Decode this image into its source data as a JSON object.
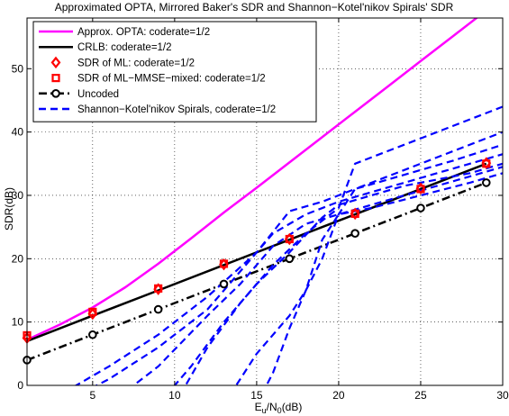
{
  "chart_data": {
    "type": "line",
    "title": "Approximated OPTA, Mirrored Baker's SDR and Shannon−Kotel'nikov Spirals' SDR",
    "xlabel": "E_u/N_0(dB)",
    "xlabel_parts": {
      "main": "E",
      "sub1": "u",
      "mid": "/N",
      "sub2": "0",
      "tail": "(dB)"
    },
    "ylabel": "SDR(dB)",
    "xlim": [
      1,
      30
    ],
    "ylim": [
      0,
      58
    ],
    "xticks": [
      5,
      10,
      15,
      20,
      25,
      30
    ],
    "yticks": [
      0,
      10,
      20,
      30,
      40,
      50
    ],
    "grid": true,
    "legend_position": "top-left",
    "series": [
      {
        "name": "Approx. OPTA: coderate=1/2",
        "color": "#ff00ff",
        "style": "solid",
        "marker": "none",
        "x": [
          1,
          3,
          5,
          7,
          9,
          11,
          13,
          15,
          17,
          19,
          21,
          23,
          25,
          27,
          29,
          30
        ],
        "y": [
          7.2,
          9.6,
          12.3,
          15.5,
          19.2,
          23.2,
          27.3,
          31.2,
          35.2,
          39.2,
          43.2,
          47.2,
          51.2,
          55.2,
          59.2,
          61.2
        ]
      },
      {
        "name": "CRLB: coderate=1/2",
        "color": "#000000",
        "style": "solid",
        "marker": "none",
        "x": [
          1,
          5,
          9,
          13,
          17,
          21,
          25,
          29
        ],
        "y": [
          7,
          11,
          15,
          19,
          23,
          27,
          31,
          35
        ]
      },
      {
        "name": "SDR of ML: coderate=1/2",
        "color": "#ff0000",
        "style": "none",
        "marker": "diamond",
        "x": [
          1,
          5,
          9,
          13,
          17,
          21,
          25,
          29
        ],
        "y": [
          7.5,
          11.3,
          15.2,
          19.1,
          23.1,
          27.1,
          31.1,
          35.1
        ]
      },
      {
        "name": "SDR of ML−MMSE−mixed: coderate=1/2",
        "color": "#ff0000",
        "style": "none",
        "marker": "square",
        "x": [
          1,
          5,
          9,
          13,
          17,
          21,
          25,
          29
        ],
        "y": [
          7.9,
          11.6,
          15.3,
          19.2,
          23.1,
          27.1,
          31,
          35
        ]
      },
      {
        "name": "Uncoded",
        "color": "#000000",
        "style": "dashdot",
        "marker": "circle",
        "x": [
          1,
          5,
          9,
          13,
          17,
          21,
          25,
          29
        ],
        "y": [
          4,
          8,
          12,
          16,
          20,
          24,
          28,
          32
        ]
      },
      {
        "name": "Shannon−Kotel'nikov Spirals, coderate=1/2",
        "color": "#0000ff",
        "style": "dashed",
        "marker": "none",
        "lines": [
          {
            "x": [
              2,
              6,
              9,
              12,
              15,
              17,
              19,
              21,
              23,
              25,
              27,
              30
            ],
            "y": [
              -3,
              3,
              8,
              14,
              21,
              27.5,
              29,
              31,
              32.5,
              34,
              35.5,
              38
            ]
          },
          {
            "x": [
              3,
              6,
              9,
              12,
              14,
              16,
              18,
              20,
              22,
              24,
              26,
              28,
              30
            ],
            "y": [
              -3,
              1,
              6,
              12,
              18,
              24,
              27,
              29,
              30.5,
              32,
              33.5,
              35,
              36.5
            ]
          },
          {
            "x": [
              6,
              9,
              12,
              14,
              16,
              18,
              20,
              22,
              24,
              26,
              28,
              30
            ],
            "y": [
              -3,
              3,
              11,
              16,
              22,
              25.5,
              27,
              28.5,
              30,
              31.5,
              33,
              34.5
            ]
          },
          {
            "x": [
              9,
              11,
              13,
              15,
              17,
              19,
              20,
              22,
              24,
              26,
              28,
              30
            ],
            "y": [
              -3,
              3,
              10,
              16,
              21,
              26.5,
              28.5,
              30,
              31.5,
              32.5,
              33.5,
              35
            ]
          },
          {
            "x": [
              10,
              12,
              14,
              16,
              18,
              20,
              21,
              24,
              27,
              30
            ],
            "y": [
              -3,
              6,
              13,
              19,
              24,
              28,
              35,
              38,
              41,
              44
            ]
          },
          {
            "x": [
              13,
              15,
              17,
              18,
              19,
              20,
              21,
              24,
              27,
              30
            ],
            "y": [
              -3,
              5,
              11,
              15,
              20,
              27,
              31,
              34,
              37,
              40
            ]
          },
          {
            "x": [
              15,
              16,
              17,
              18,
              19,
              20,
              22,
              25,
              28,
              30
            ],
            "y": [
              -3,
              2,
              9,
              15,
              23,
              27,
              28,
              30,
              32,
              33.5
            ]
          }
        ]
      }
    ]
  }
}
